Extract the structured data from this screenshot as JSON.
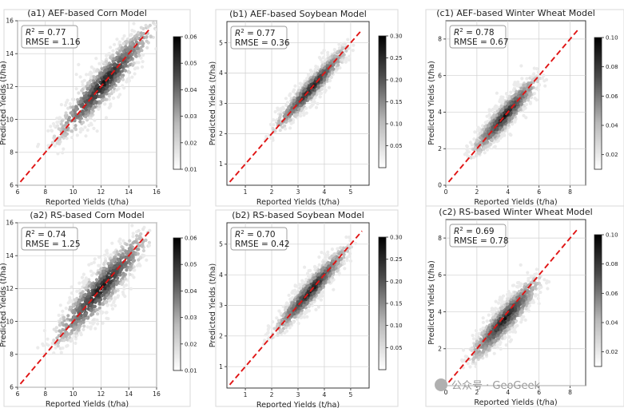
{
  "watermark": "公众号 · GeoGeek",
  "charts": [
    {
      "title": "(a1) AEF-based Corn Model",
      "xlabel": "Reported Yields (t/ha)",
      "ylabel": "Predicted Yields (t/ha)",
      "r2": "= 0.77",
      "rmse": "RMSE = 1.16",
      "xlim": [
        6,
        16
      ],
      "ylim": [
        6,
        16
      ],
      "xticks": [
        6,
        8,
        10,
        12,
        14,
        16
      ],
      "yticks": [
        6,
        8,
        10,
        12,
        14,
        16
      ],
      "cbar": [
        0.01,
        0.06
      ],
      "cbar_ticks": [
        "0.01",
        "0.02",
        "0.03",
        "0.04",
        "0.05",
        "0.06"
      ],
      "density": {
        "center": [
          12.2,
          12.2
        ],
        "major_axis_range": [
          8.5,
          15.8
        ],
        "minor_sd": 0.55
      }
    },
    {
      "title": "(b1) AEF-based Soybean Model",
      "xlabel": "Reported Yields (t/ha)",
      "ylabel": "Predicted Yields (t/ha)",
      "r2": "= 0.77",
      "rmse": "RMSE = 0.36",
      "xlim": [
        0.3,
        5.7
      ],
      "ylim": [
        0.3,
        5.7
      ],
      "xticks": [
        1,
        2,
        3,
        4,
        5
      ],
      "yticks": [
        1,
        2,
        3,
        4,
        5
      ],
      "cbar": [
        0.0,
        0.3
      ],
      "cbar_ticks": [
        "0.05",
        "0.10",
        "0.15",
        "0.20",
        "0.25",
        "0.30"
      ],
      "density": {
        "center": [
          3.5,
          3.5
        ],
        "major_axis_range": [
          1.8,
          4.7
        ],
        "minor_sd": 0.18
      }
    },
    {
      "title": "(c1) AEF-based Winter Wheat Model",
      "xlabel": "Reported Yields (t/ha)",
      "ylabel": "Predicted Yields (t/ha)",
      "r2": "= 0.78",
      "rmse": "RMSE = 0.67",
      "xlim": [
        0,
        9
      ],
      "ylim": [
        0,
        9
      ],
      "xticks": [
        0,
        2,
        4,
        6,
        8
      ],
      "yticks": [
        0,
        2,
        4,
        6,
        8
      ],
      "cbar": [
        0.01,
        0.1
      ],
      "cbar_ticks": [
        "0.02",
        "0.04",
        "0.06",
        "0.08",
        "0.10"
      ],
      "density": {
        "center": [
          3.8,
          3.8
        ],
        "major_axis_range": [
          1.6,
          6.0
        ],
        "minor_sd": 0.35
      }
    },
    {
      "title": "(a2) RS-based Corn Model",
      "xlabel": "Reported Yields (t/ha)",
      "ylabel": "Predicted Yields (t/ha)",
      "r2": "= 0.74",
      "rmse": "RMSE = 1.25",
      "xlim": [
        6,
        16
      ],
      "ylim": [
        6,
        16
      ],
      "xticks": [
        6,
        8,
        10,
        12,
        14,
        16
      ],
      "yticks": [
        6,
        8,
        10,
        12,
        14,
        16
      ],
      "cbar": [
        0.01,
        0.06
      ],
      "cbar_ticks": [
        "0.01",
        "0.02",
        "0.03",
        "0.04",
        "0.05",
        "0.06"
      ],
      "density": {
        "center": [
          12.0,
          12.0
        ],
        "major_axis_range": [
          8.5,
          15.5
        ],
        "minor_sd": 0.6
      }
    },
    {
      "title": "(b2) RS-based Soybean Model",
      "xlabel": "Reported Yields (t/ha)",
      "ylabel": "Predicted Yields (t/ha)",
      "r2": "= 0.70",
      "rmse": "RMSE = 0.42",
      "xlim": [
        0.3,
        5.7
      ],
      "ylim": [
        0.3,
        5.7
      ],
      "xticks": [
        1,
        2,
        3,
        4,
        5
      ],
      "yticks": [
        1,
        2,
        3,
        4,
        5
      ],
      "cbar": [
        0.0,
        0.3
      ],
      "cbar_ticks": [
        "0.05",
        "0.10",
        "0.15",
        "0.20",
        "0.25",
        "0.30"
      ],
      "density": {
        "center": [
          3.5,
          3.5
        ],
        "major_axis_range": [
          1.8,
          4.8
        ],
        "minor_sd": 0.2
      }
    },
    {
      "title": "(c2) RS-based Winter Wheat Model",
      "xlabel": "Reported Yields (t/ha)",
      "ylabel": "Predicted Yields (t/ha)",
      "r2": "= 0.69",
      "rmse": "RMSE = 0.78",
      "xlim": [
        0,
        9
      ],
      "ylim": [
        0,
        9
      ],
      "xticks": [
        0,
        2,
        4,
        6,
        8
      ],
      "yticks": [
        0,
        2,
        4,
        6,
        8
      ],
      "cbar": [
        0.01,
        0.1
      ],
      "cbar_ticks": [
        "0.02",
        "0.04",
        "0.06",
        "0.08",
        "0.10"
      ],
      "density": {
        "center": [
          3.8,
          3.6
        ],
        "major_axis_range": [
          1.6,
          6.2
        ],
        "minor_sd": 0.4
      }
    }
  ]
}
